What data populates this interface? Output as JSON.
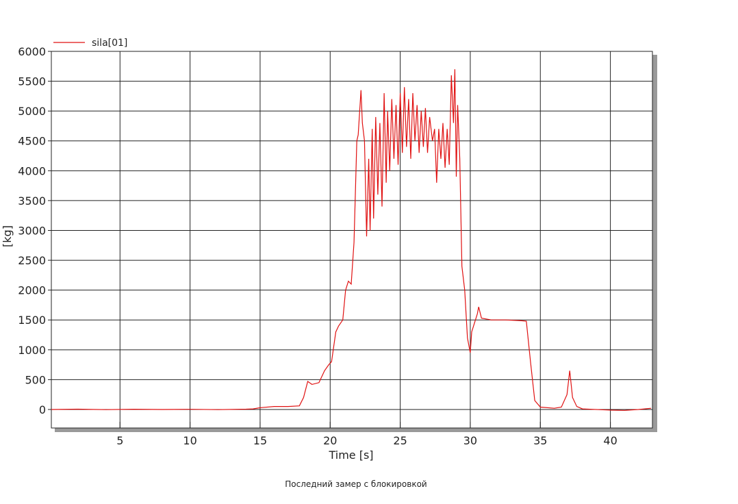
{
  "chart_data": {
    "type": "line",
    "legend_label": "sila[01]",
    "x_label": "Time [s]",
    "y_label": "[kg]",
    "caption": "Последний замер с блокировкой",
    "xlim": [
      0.1,
      43
    ],
    "ylim": [
      -310,
      6000
    ],
    "xticks": [
      5,
      10,
      15,
      20,
      25,
      30,
      35,
      40
    ],
    "yticks": [
      0,
      500,
      1000,
      1500,
      2000,
      2500,
      3000,
      3500,
      4000,
      4500,
      5000,
      5500,
      6000
    ],
    "grid": true,
    "legend": "top-left",
    "series": [
      {
        "name": "sila[01]",
        "color": "#e01010",
        "x": [
          0.1,
          2,
          4,
          6,
          8,
          10,
          12,
          14,
          14.5,
          15,
          16,
          17,
          17.8,
          18.1,
          18.4,
          18.7,
          19.2,
          19.6,
          19.9,
          20.1,
          20.4,
          20.6,
          20.9,
          21.1,
          21.3,
          21.5,
          21.7,
          21.9,
          22.0,
          22.2,
          22.3,
          22.45,
          22.6,
          22.75,
          22.85,
          23.0,
          23.1,
          23.25,
          23.4,
          23.55,
          23.7,
          23.85,
          24.0,
          24.1,
          24.25,
          24.4,
          24.55,
          24.7,
          24.85,
          25.0,
          25.15,
          25.3,
          25.45,
          25.6,
          25.75,
          25.9,
          26.05,
          26.2,
          26.35,
          26.5,
          26.65,
          26.8,
          26.95,
          27.1,
          27.3,
          27.45,
          27.6,
          27.75,
          27.9,
          28.05,
          28.2,
          28.35,
          28.5,
          28.65,
          28.8,
          28.9,
          29.0,
          29.1,
          29.25,
          29.4,
          29.6,
          29.8,
          30.0,
          30.1,
          30.3,
          30.5,
          30.6,
          30.8,
          31.5,
          32.5,
          33.5,
          34.0,
          34.3,
          34.6,
          35,
          36,
          36.5,
          36.9,
          37.1,
          37.3,
          37.6,
          38,
          40,
          41,
          42,
          42.9
        ],
        "values": [
          0,
          5,
          -3,
          4,
          0,
          3,
          -2,
          5,
          10,
          30,
          50,
          50,
          60,
          200,
          470,
          420,
          450,
          650,
          750,
          800,
          1300,
          1400,
          1500,
          2000,
          2150,
          2100,
          2800,
          4500,
          4600,
          5350,
          4800,
          4500,
          2900,
          4200,
          3000,
          4700,
          3200,
          4900,
          3600,
          4800,
          3400,
          5300,
          3800,
          5000,
          4000,
          5200,
          4200,
          5100,
          4100,
          5300,
          4300,
          5400,
          4400,
          5200,
          4200,
          5300,
          4500,
          5100,
          4300,
          5000,
          4400,
          5050,
          4300,
          4900,
          4500,
          4700,
          3800,
          4700,
          4200,
          4800,
          4050,
          4700,
          4100,
          5600,
          4800,
          5700,
          3900,
          5100,
          4200,
          2400,
          2000,
          1200,
          950,
          1300,
          1450,
          1600,
          1720,
          1530,
          1500,
          1500,
          1490,
          1480,
          800,
          150,
          40,
          20,
          40,
          250,
          650,
          200,
          50,
          10,
          -10,
          -15,
          0,
          20
        ]
      }
    ]
  }
}
